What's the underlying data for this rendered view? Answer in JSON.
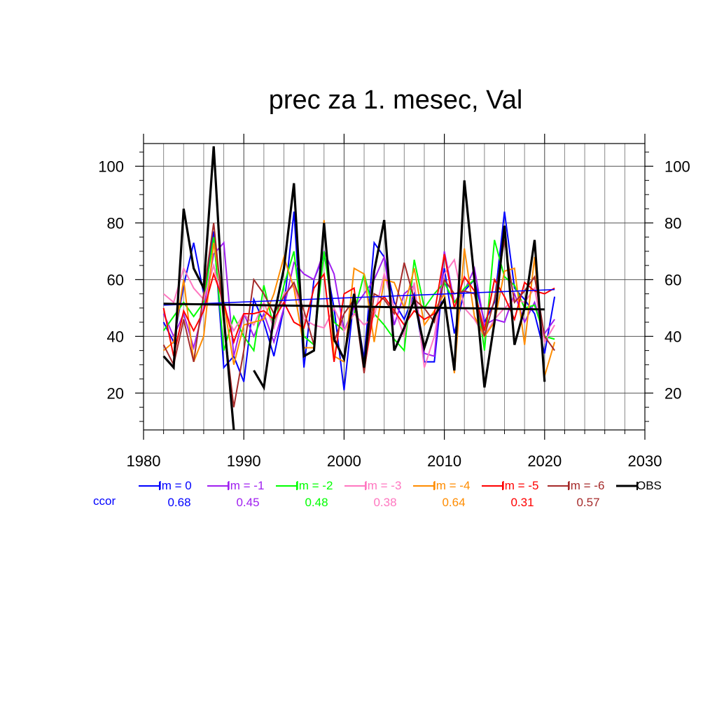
{
  "title": "prec za 1. mesec, Val",
  "ccor_label": "ccor",
  "chart_data": {
    "type": "line",
    "x_range": [
      1980,
      2030
    ],
    "y_range": [
      7,
      108
    ],
    "x_ticks": [
      1980,
      1990,
      2000,
      2010,
      2020,
      2030
    ],
    "y_ticks": [
      20,
      40,
      60,
      80,
      100
    ],
    "grid": true,
    "legend_placement": "bottom",
    "series": [
      {
        "name": "lm = 0",
        "color": "#0000ff",
        "ccor": "0.68",
        "width": 2,
        "x": [
          1982,
          1983,
          1984,
          1985,
          1986,
          1987,
          1988,
          1989,
          1990,
          1991,
          1992,
          1993,
          1994,
          1995,
          1996,
          1997,
          1998,
          1999,
          2000,
          2001,
          2002,
          2003,
          2004,
          2005,
          2006,
          2007,
          2008,
          2009,
          2010,
          2011,
          2012,
          2013,
          2014,
          2015,
          2016,
          2017,
          2018,
          2019,
          2020,
          2021
        ],
        "y": [
          45,
          38,
          58,
          73,
          55,
          77,
          29,
          33,
          24,
          53,
          45,
          33,
          50,
          84,
          29,
          60,
          69,
          50,
          21,
          54,
          32,
          73,
          68,
          52,
          46,
          55,
          31,
          31,
          64,
          41,
          56,
          60,
          45,
          52,
          84,
          57,
          53,
          48,
          34,
          54
        ],
        "trend": [
          [
            1982,
            51
          ],
          [
            2021,
            56.5
          ]
        ]
      },
      {
        "name": "lm = -1",
        "color": "#a020f0",
        "ccor": "0.45",
        "width": 2,
        "x": [
          1982,
          1983,
          1984,
          1985,
          1986,
          1987,
          1988,
          1989,
          1990,
          1991,
          1992,
          1993,
          1994,
          1995,
          1996,
          1997,
          1998,
          1999,
          2000,
          2001,
          2002,
          2003,
          2004,
          2005,
          2006,
          2007,
          2008,
          2009,
          2010,
          2011,
          2012,
          2013,
          2014,
          2015,
          2016,
          2017,
          2018,
          2019,
          2020,
          2021
        ],
        "y": [
          48,
          40,
          48,
          36,
          50,
          69,
          73,
          33,
          48,
          40,
          48,
          38,
          50,
          66,
          62,
          60,
          70,
          62,
          42,
          50,
          55,
          60,
          68,
          44,
          55,
          58,
          34,
          33,
          70,
          52,
          56,
          64,
          44,
          46,
          45,
          55,
          45,
          52,
          41,
          46
        ]
      },
      {
        "name": "lm = -2",
        "color": "#00ff00",
        "ccor": "0.48",
        "width": 2,
        "x": [
          1982,
          1983,
          1984,
          1985,
          1986,
          1987,
          1988,
          1989,
          1990,
          1991,
          1992,
          1993,
          1994,
          1995,
          1996,
          1997,
          1998,
          1999,
          2000,
          2001,
          2002,
          2003,
          2004,
          2005,
          2006,
          2007,
          2008,
          2009,
          2010,
          2011,
          2012,
          2013,
          2014,
          2015,
          2016,
          2017,
          2018,
          2019,
          2020,
          2021
        ],
        "y": [
          42,
          47,
          52,
          47,
          52,
          75,
          35,
          47,
          40,
          35,
          58,
          43,
          58,
          70,
          40,
          37,
          70,
          45,
          42,
          48,
          62,
          48,
          44,
          39,
          35,
          67,
          50,
          55,
          59,
          52,
          57,
          60,
          35,
          74,
          61,
          58,
          50,
          51,
          40,
          39
        ]
      },
      {
        "name": "lm = -3",
        "color": "#ff77c0",
        "ccor": "0.38",
        "width": 2,
        "x": [
          1982,
          1983,
          1984,
          1985,
          1986,
          1987,
          1988,
          1989,
          1990,
          1991,
          1992,
          1993,
          1994,
          1995,
          1996,
          1997,
          1998,
          1999,
          2000,
          2001,
          2002,
          2003,
          2004,
          2005,
          2006,
          2007,
          2008,
          2009,
          2010,
          2011,
          2012,
          2013,
          2014,
          2015,
          2016,
          2017,
          2018,
          2019,
          2020,
          2021
        ],
        "y": [
          55,
          52,
          64,
          57,
          53,
          65,
          50,
          42,
          48,
          44,
          52,
          43,
          55,
          58,
          46,
          44,
          43,
          50,
          42,
          48,
          44,
          47,
          62,
          50,
          40,
          59,
          29,
          40,
          62,
          67,
          50,
          46,
          40,
          46,
          50,
          53,
          52,
          57,
          38,
          44
        ]
      },
      {
        "name": "lm = -4",
        "color": "#ff8c00",
        "ccor": "0.64",
        "width": 2,
        "x": [
          1982,
          1983,
          1984,
          1985,
          1986,
          1987,
          1988,
          1989,
          1990,
          1991,
          1992,
          1993,
          1994,
          1995,
          1996,
          1997,
          1998,
          1999,
          2000,
          2001,
          2002,
          2003,
          2004,
          2005,
          2006,
          2007,
          2008,
          2009,
          2010,
          2011,
          2012,
          2013,
          2014,
          2015,
          2016,
          2017,
          2018,
          2019,
          2020,
          2021
        ],
        "y": [
          35,
          38,
          60,
          31,
          40,
          73,
          52,
          30,
          44,
          45,
          46,
          55,
          68,
          57,
          36,
          36,
          81,
          33,
          31,
          64,
          62,
          38,
          60,
          59,
          50,
          64,
          44,
          49,
          55,
          27,
          71,
          47,
          40,
          45,
          63,
          64,
          37,
          68,
          26,
          38
        ]
      },
      {
        "name": "lm = -5",
        "color": "#ff0000",
        "ccor": "0.31",
        "width": 2,
        "x": [
          1982,
          1983,
          1984,
          1985,
          1986,
          1987,
          1988,
          1989,
          1990,
          1991,
          1992,
          1993,
          1994,
          1995,
          1996,
          1997,
          1998,
          1999,
          2000,
          2001,
          2002,
          2003,
          2004,
          2005,
          2006,
          2007,
          2008,
          2009,
          2010,
          2011,
          2012,
          2013,
          2014,
          2015,
          2016,
          2017,
          2018,
          2019,
          2020,
          2021
        ],
        "y": [
          50,
          33,
          49,
          42,
          49,
          62,
          52,
          38,
          48,
          48,
          49,
          46,
          52,
          45,
          43,
          57,
          62,
          31,
          55,
          57,
          28,
          50,
          54,
          49,
          44,
          49,
          46,
          48,
          69,
          50,
          61,
          56,
          42,
          60,
          54,
          46,
          59,
          56,
          55,
          57
        ]
      },
      {
        "name": "lm = -6",
        "color": "#a52a2a",
        "ccor": "0.57",
        "width": 2,
        "x": [
          1982,
          1983,
          1984,
          1985,
          1986,
          1987,
          1988,
          1989,
          1990,
          1991,
          1992,
          1993,
          1994,
          1995,
          1996,
          1997,
          1998,
          1999,
          2000,
          2001,
          2002,
          2003,
          2004,
          2005,
          2006,
          2007,
          2008,
          2009,
          2010,
          2011,
          2012,
          2013,
          2014,
          2015,
          2016,
          2017,
          2018,
          2019,
          2020,
          2021
        ],
        "y": [
          37,
          30,
          46,
          31,
          55,
          80,
          45,
          15,
          35,
          60,
          55,
          48,
          54,
          59,
          49,
          37,
          80,
          38,
          48,
          53,
          27,
          55,
          53,
          48,
          66,
          53,
          50,
          45,
          60,
          55,
          56,
          55,
          40,
          53,
          74,
          52,
          56,
          61,
          40,
          35
        ]
      },
      {
        "name": "OBS",
        "color": "#000000",
        "width": 3.2,
        "x": [
          1982,
          1983,
          1984,
          1985,
          1986,
          1987,
          1988,
          1989,
          null,
          1991,
          1992,
          1993,
          1994,
          1995,
          1996,
          1997,
          1998,
          1999,
          2000,
          2001,
          2002,
          2003,
          2004,
          2005,
          2006,
          2007,
          2008,
          2009,
          2010,
          2011,
          2012,
          2013,
          2014,
          2015,
          2016,
          2017,
          2018,
          2019,
          2020
        ],
        "y": [
          33,
          29,
          85,
          64,
          57,
          107,
          47,
          7,
          null,
          28,
          22,
          47,
          64,
          94,
          33,
          35,
          80,
          39,
          32,
          55,
          29,
          63,
          81,
          35,
          43,
          53,
          36,
          47,
          53,
          28,
          95,
          60,
          22,
          45,
          79,
          37,
          50,
          74,
          24
        ],
        "trend": [
          [
            1982,
            51.5
          ],
          [
            2020,
            49.5
          ]
        ]
      }
    ]
  }
}
